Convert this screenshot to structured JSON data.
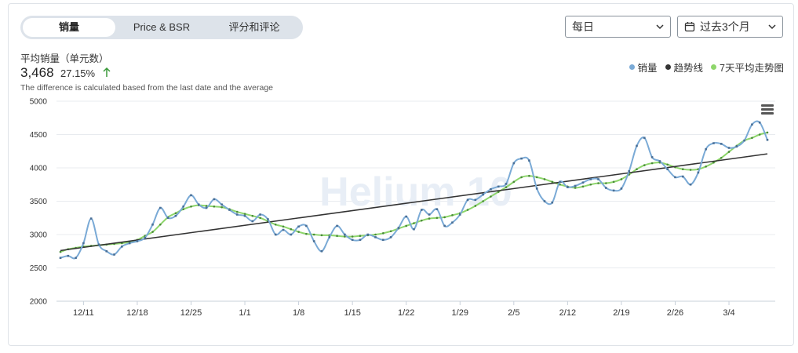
{
  "tabs": [
    {
      "label": "销量",
      "active": true
    },
    {
      "label": "Price & BSR",
      "active": false
    },
    {
      "label": "评分和评论",
      "active": false
    }
  ],
  "filters": {
    "interval": "每日",
    "range": "过去3个月"
  },
  "metric": {
    "title": "平均销量（单元数）",
    "value": "3,468",
    "change": "27.15%",
    "note": "The difference is calculated based from the last date and the average"
  },
  "legend": [
    {
      "label": "销量",
      "color": "#7aaad6"
    },
    {
      "label": "趋势线",
      "color": "#333333"
    },
    {
      "label": "7天平均走势图",
      "color": "#8ed66b"
    }
  ],
  "watermark": "Helium 10",
  "chart_data": {
    "type": "line",
    "x_tick_labels": [
      "12/11",
      "12/18",
      "12/25",
      "1/1",
      "1/8",
      "1/15",
      "1/22",
      "1/29",
      "2/5",
      "2/12",
      "2/19",
      "2/26",
      "3/4"
    ],
    "ylim": [
      2000,
      5000
    ],
    "y_ticks": [
      2000,
      2500,
      3000,
      3500,
      4000,
      4500,
      5000
    ],
    "grid": true,
    "legend_position": "top-right",
    "x_start_date": "12/8",
    "series": [
      {
        "name": "销量",
        "color": "#7aaad6",
        "values": [
          2650,
          2680,
          2650,
          2870,
          3240,
          2850,
          2750,
          2700,
          2820,
          2870,
          2900,
          2950,
          3150,
          3400,
          3250,
          3280,
          3420,
          3590,
          3450,
          3400,
          3530,
          3450,
          3370,
          3300,
          3280,
          3200,
          3300,
          3230,
          3000,
          3070,
          3000,
          3120,
          3130,
          2900,
          2750,
          2960,
          3130,
          3000,
          2920,
          2920,
          3000,
          2960,
          2920,
          2960,
          3100,
          3270,
          3080,
          3370,
          3300,
          3380,
          3130,
          3180,
          3300,
          3520,
          3520,
          3600,
          3680,
          3720,
          3760,
          4070,
          4140,
          4110,
          3690,
          3500,
          3480,
          3790,
          3710,
          3730,
          3780,
          3830,
          3830,
          3700,
          3660,
          3690,
          3950,
          4330,
          4450,
          4160,
          4100,
          3980,
          3860,
          3870,
          3750,
          3930,
          4280,
          4370,
          4360,
          4300,
          4320,
          4410,
          4650,
          4680,
          4420
        ]
      },
      {
        "name": "趋势线",
        "color": "#333333",
        "values_linear": {
          "start": 2760,
          "end": 4210
        }
      },
      {
        "name": "7天平均走势图",
        "color": "#8ed66b",
        "values": [
          2740,
          2780,
          2800,
          2820,
          2830,
          2840,
          2850,
          2860,
          2870,
          2890,
          2920,
          2980,
          3040,
          3150,
          3260,
          3320,
          3380,
          3420,
          3440,
          3430,
          3420,
          3410,
          3380,
          3340,
          3310,
          3280,
          3250,
          3200,
          3150,
          3120,
          3080,
          3040,
          3010,
          3000,
          2990,
          2990,
          2980,
          2970,
          2970,
          2980,
          2990,
          3000,
          3020,
          3050,
          3090,
          3130,
          3170,
          3210,
          3240,
          3250,
          3260,
          3290,
          3320,
          3370,
          3430,
          3500,
          3570,
          3640,
          3710,
          3790,
          3860,
          3880,
          3860,
          3830,
          3790,
          3750,
          3720,
          3700,
          3720,
          3750,
          3770,
          3770,
          3790,
          3830,
          3900,
          3980,
          4040,
          4070,
          4080,
          4050,
          4010,
          3980,
          3970,
          3980,
          4020,
          4080,
          4150,
          4240,
          4330,
          4410,
          4450,
          4500,
          4530
        ]
      }
    ]
  }
}
